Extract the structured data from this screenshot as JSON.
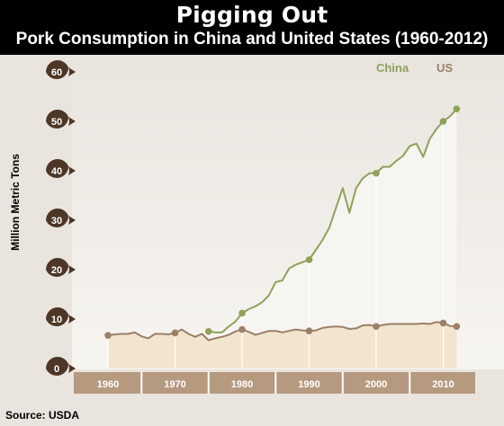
{
  "header": {
    "title": "Pigging Out",
    "subtitle": "Pork Consumption in China and United States (1960-2012)"
  },
  "source": "Source: USDA",
  "colors": {
    "china": "#8ea25a",
    "us": "#9b8068",
    "us_fill": "#f2e5cf",
    "china_fill": "#f7f5f1",
    "badge": "#4d3626",
    "axis_bar": "#b69a80"
  },
  "chart_data": {
    "type": "line",
    "title": "Pork Consumption in China and United States (1960-2012)",
    "xlabel": "",
    "ylabel": "Million Metric Tons",
    "xlim": [
      1955,
      2013
    ],
    "ylim": [
      0,
      60
    ],
    "yticks": [
      0,
      10,
      20,
      30,
      40,
      50,
      60
    ],
    "xticks": [
      1960,
      1970,
      1980,
      1990,
      2000,
      2010
    ],
    "grid": false,
    "legend": "top-right",
    "series": [
      {
        "name": "China",
        "x": [
          1975,
          1976,
          1977,
          1978,
          1979,
          1980,
          1981,
          1982,
          1983,
          1984,
          1985,
          1986,
          1987,
          1988,
          1989,
          1990,
          1991,
          1992,
          1993,
          1994,
          1995,
          1996,
          1997,
          1998,
          1999,
          2000,
          2001,
          2002,
          2003,
          2004,
          2005,
          2006,
          2007,
          2008,
          2009,
          2010,
          2011,
          2012
        ],
        "y": [
          7.5,
          7.3,
          7.3,
          8.5,
          9.5,
          11.2,
          12,
          12.6,
          13.4,
          14.8,
          17.5,
          17.8,
          20.2,
          21,
          21.5,
          22,
          24,
          26,
          28.5,
          32.5,
          36.5,
          31.5,
          36.5,
          38.5,
          39.5,
          39.5,
          40.8,
          40.8,
          42,
          43,
          45,
          45.5,
          42.8,
          46.5,
          48.5,
          50,
          51,
          52.5
        ],
        "markers": [
          1975,
          1980,
          1990,
          2000,
          2010,
          2012
        ]
      },
      {
        "name": "US",
        "x": [
          1960,
          1961,
          1962,
          1963,
          1964,
          1965,
          1966,
          1967,
          1968,
          1969,
          1970,
          1971,
          1972,
          1973,
          1974,
          1975,
          1976,
          1977,
          1978,
          1979,
          1980,
          1981,
          1982,
          1983,
          1984,
          1985,
          1986,
          1987,
          1988,
          1989,
          1990,
          1991,
          1992,
          1993,
          1994,
          1995,
          1996,
          1997,
          1998,
          1999,
          2000,
          2001,
          2002,
          2003,
          2004,
          2005,
          2006,
          2007,
          2008,
          2009,
          2010,
          2011,
          2012
        ],
        "y": [
          6.7,
          6.9,
          7,
          7,
          7.3,
          6.5,
          6.1,
          7,
          7,
          6.9,
          7.2,
          7.9,
          7,
          6.4,
          7,
          5.7,
          6.1,
          6.4,
          6.8,
          7.5,
          7.9,
          7.4,
          6.8,
          7.2,
          7.6,
          7.6,
          7.3,
          7.6,
          7.9,
          7.7,
          7.6,
          7.7,
          8.2,
          8.4,
          8.5,
          8.4,
          8,
          8.1,
          8.7,
          8.8,
          8.5,
          8.8,
          9,
          9,
          9,
          9,
          9,
          9.1,
          9,
          9.4,
          9.2,
          8.6,
          8.5
        ],
        "markers": [
          1960,
          1970,
          1980,
          1990,
          2000,
          2010,
          2012
        ]
      }
    ]
  }
}
